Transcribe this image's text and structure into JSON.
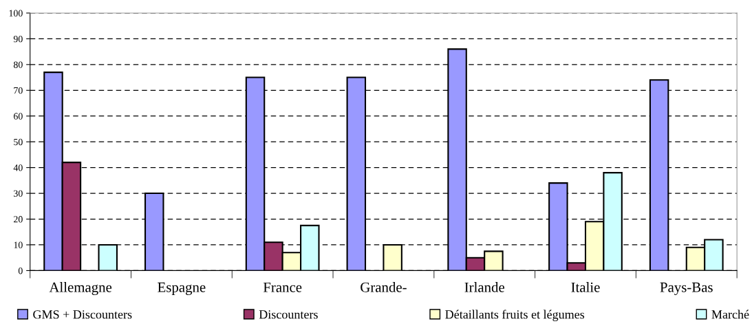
{
  "chart_data": {
    "type": "bar",
    "categories": [
      "Allemagne",
      "Espagne",
      "France",
      "Grande-",
      "Irlande",
      "Italie",
      "Pays-Bas"
    ],
    "series": [
      {
        "name": "GMS + Discounters",
        "color": "#9999ff",
        "values": [
          77,
          30,
          75,
          75,
          86,
          34,
          74
        ]
      },
      {
        "name": "Discounters",
        "color": "#993366",
        "values": [
          42,
          null,
          11,
          null,
          5,
          3,
          null
        ]
      },
      {
        "name": "Détaillants fruits et légumes",
        "color": "#ffffcc",
        "values": [
          null,
          null,
          7,
          10,
          7.5,
          19,
          9
        ]
      },
      {
        "name": "Marché",
        "color": "#ccffff",
        "values": [
          10,
          null,
          17.5,
          null,
          null,
          38,
          12
        ]
      }
    ],
    "ylim": [
      0,
      100
    ],
    "yticks": [
      0,
      10,
      20,
      30,
      40,
      50,
      60,
      70,
      80,
      90,
      100
    ],
    "grid": "y",
    "legend": "bottom"
  }
}
